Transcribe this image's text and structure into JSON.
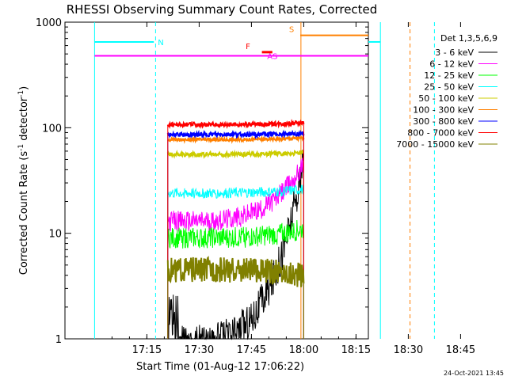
{
  "chart_data": {
    "type": "line",
    "title": "RHESSI Observing Summary Count Rates, Corrected",
    "xlabel": "Start Time (01-Aug-12 17:06:22)",
    "ylabel_main": "Corrected Count Rate (s",
    "ylabel_sup1": "-1",
    "ylabel_mid": " detector",
    "ylabel_sup2": "-1",
    "ylabel_end": ")",
    "yscale": "log",
    "ylim": [
      1,
      1000
    ],
    "xlim_minutes": [
      0,
      227
    ],
    "x_ticks": [
      {
        "label": "17:15",
        "minute": 15
      },
      {
        "label": "17:30",
        "minute": 30
      },
      {
        "label": "17:45",
        "minute": 45
      },
      {
        "label": "18:00",
        "minute": 60
      },
      {
        "label": "18:15",
        "minute": 75
      },
      {
        "label": "18:30",
        "minute": 90
      },
      {
        "label": "18:45",
        "minute": 105
      }
    ],
    "y_ticks": [
      {
        "label": "1",
        "value": 1
      },
      {
        "label": "10",
        "value": 10
      },
      {
        "label": "100",
        "value": 100
      },
      {
        "label": "1000",
        "value": 1000
      }
    ],
    "legend_title": "Det 1,3,5,6,9",
    "legend_position": "right",
    "data_start_minute": 21,
    "data_end_minute": 60,
    "series": [
      {
        "name": "3 - 6 keV",
        "color": "#000000",
        "start": 0.9,
        "end": 48,
        "noise": 0.18
      },
      {
        "name": "6 - 12 keV",
        "color": "#ff00ff",
        "start": 13,
        "end": 45,
        "noise": 0.1
      },
      {
        "name": "12 - 25 keV",
        "color": "#00ff00",
        "start": 9,
        "end": 11,
        "noise": 0.1
      },
      {
        "name": "25 - 50 keV",
        "color": "#00ffff",
        "start": 24,
        "end": 26,
        "noise": 0.05
      },
      {
        "name": "50 - 100 keV",
        "color": "#cccc00",
        "start": 56,
        "end": 58,
        "noise": 0.02
      },
      {
        "name": "100 - 300 keV",
        "color": "#ff8000",
        "start": 77,
        "end": 80,
        "noise": 0.015
      },
      {
        "name": "300 - 800 keV",
        "color": "#0000ff",
        "start": 86,
        "end": 88,
        "noise": 0.02
      },
      {
        "name": "800 - 7000 keV",
        "color": "#ff0000",
        "start": 107,
        "end": 112,
        "noise": 0.02
      },
      {
        "name": "7000 - 15000 keV",
        "color": "#808000",
        "start": 4.5,
        "end": 4,
        "noise": 0.12
      }
    ],
    "flags": [
      {
        "label": "N",
        "color": "#00ffff",
        "segments": [
          [
            0,
            17
          ],
          [
            82,
            97
          ]
        ],
        "value": 650,
        "dashed_lines": [
          17.5,
          97.5
        ],
        "solid_lines": [
          0,
          82
        ]
      },
      {
        "label": "S",
        "color": "#ff8000",
        "segments": [
          [
            59,
            82
          ]
        ],
        "value": 750,
        "dashed_lines": [
          90.5
        ],
        "solid_lines": [
          59.2
        ]
      },
      {
        "label": "F",
        "color": "#ff0000",
        "segments": [
          [
            48,
            51
          ]
        ],
        "value": 520
      },
      {
        "label": "AS",
        "color": "#ff00ff",
        "segments": [
          [
            0,
            97
          ]
        ],
        "value": 480
      }
    ]
  },
  "footer_date": "24-Oct-2021 13:45"
}
